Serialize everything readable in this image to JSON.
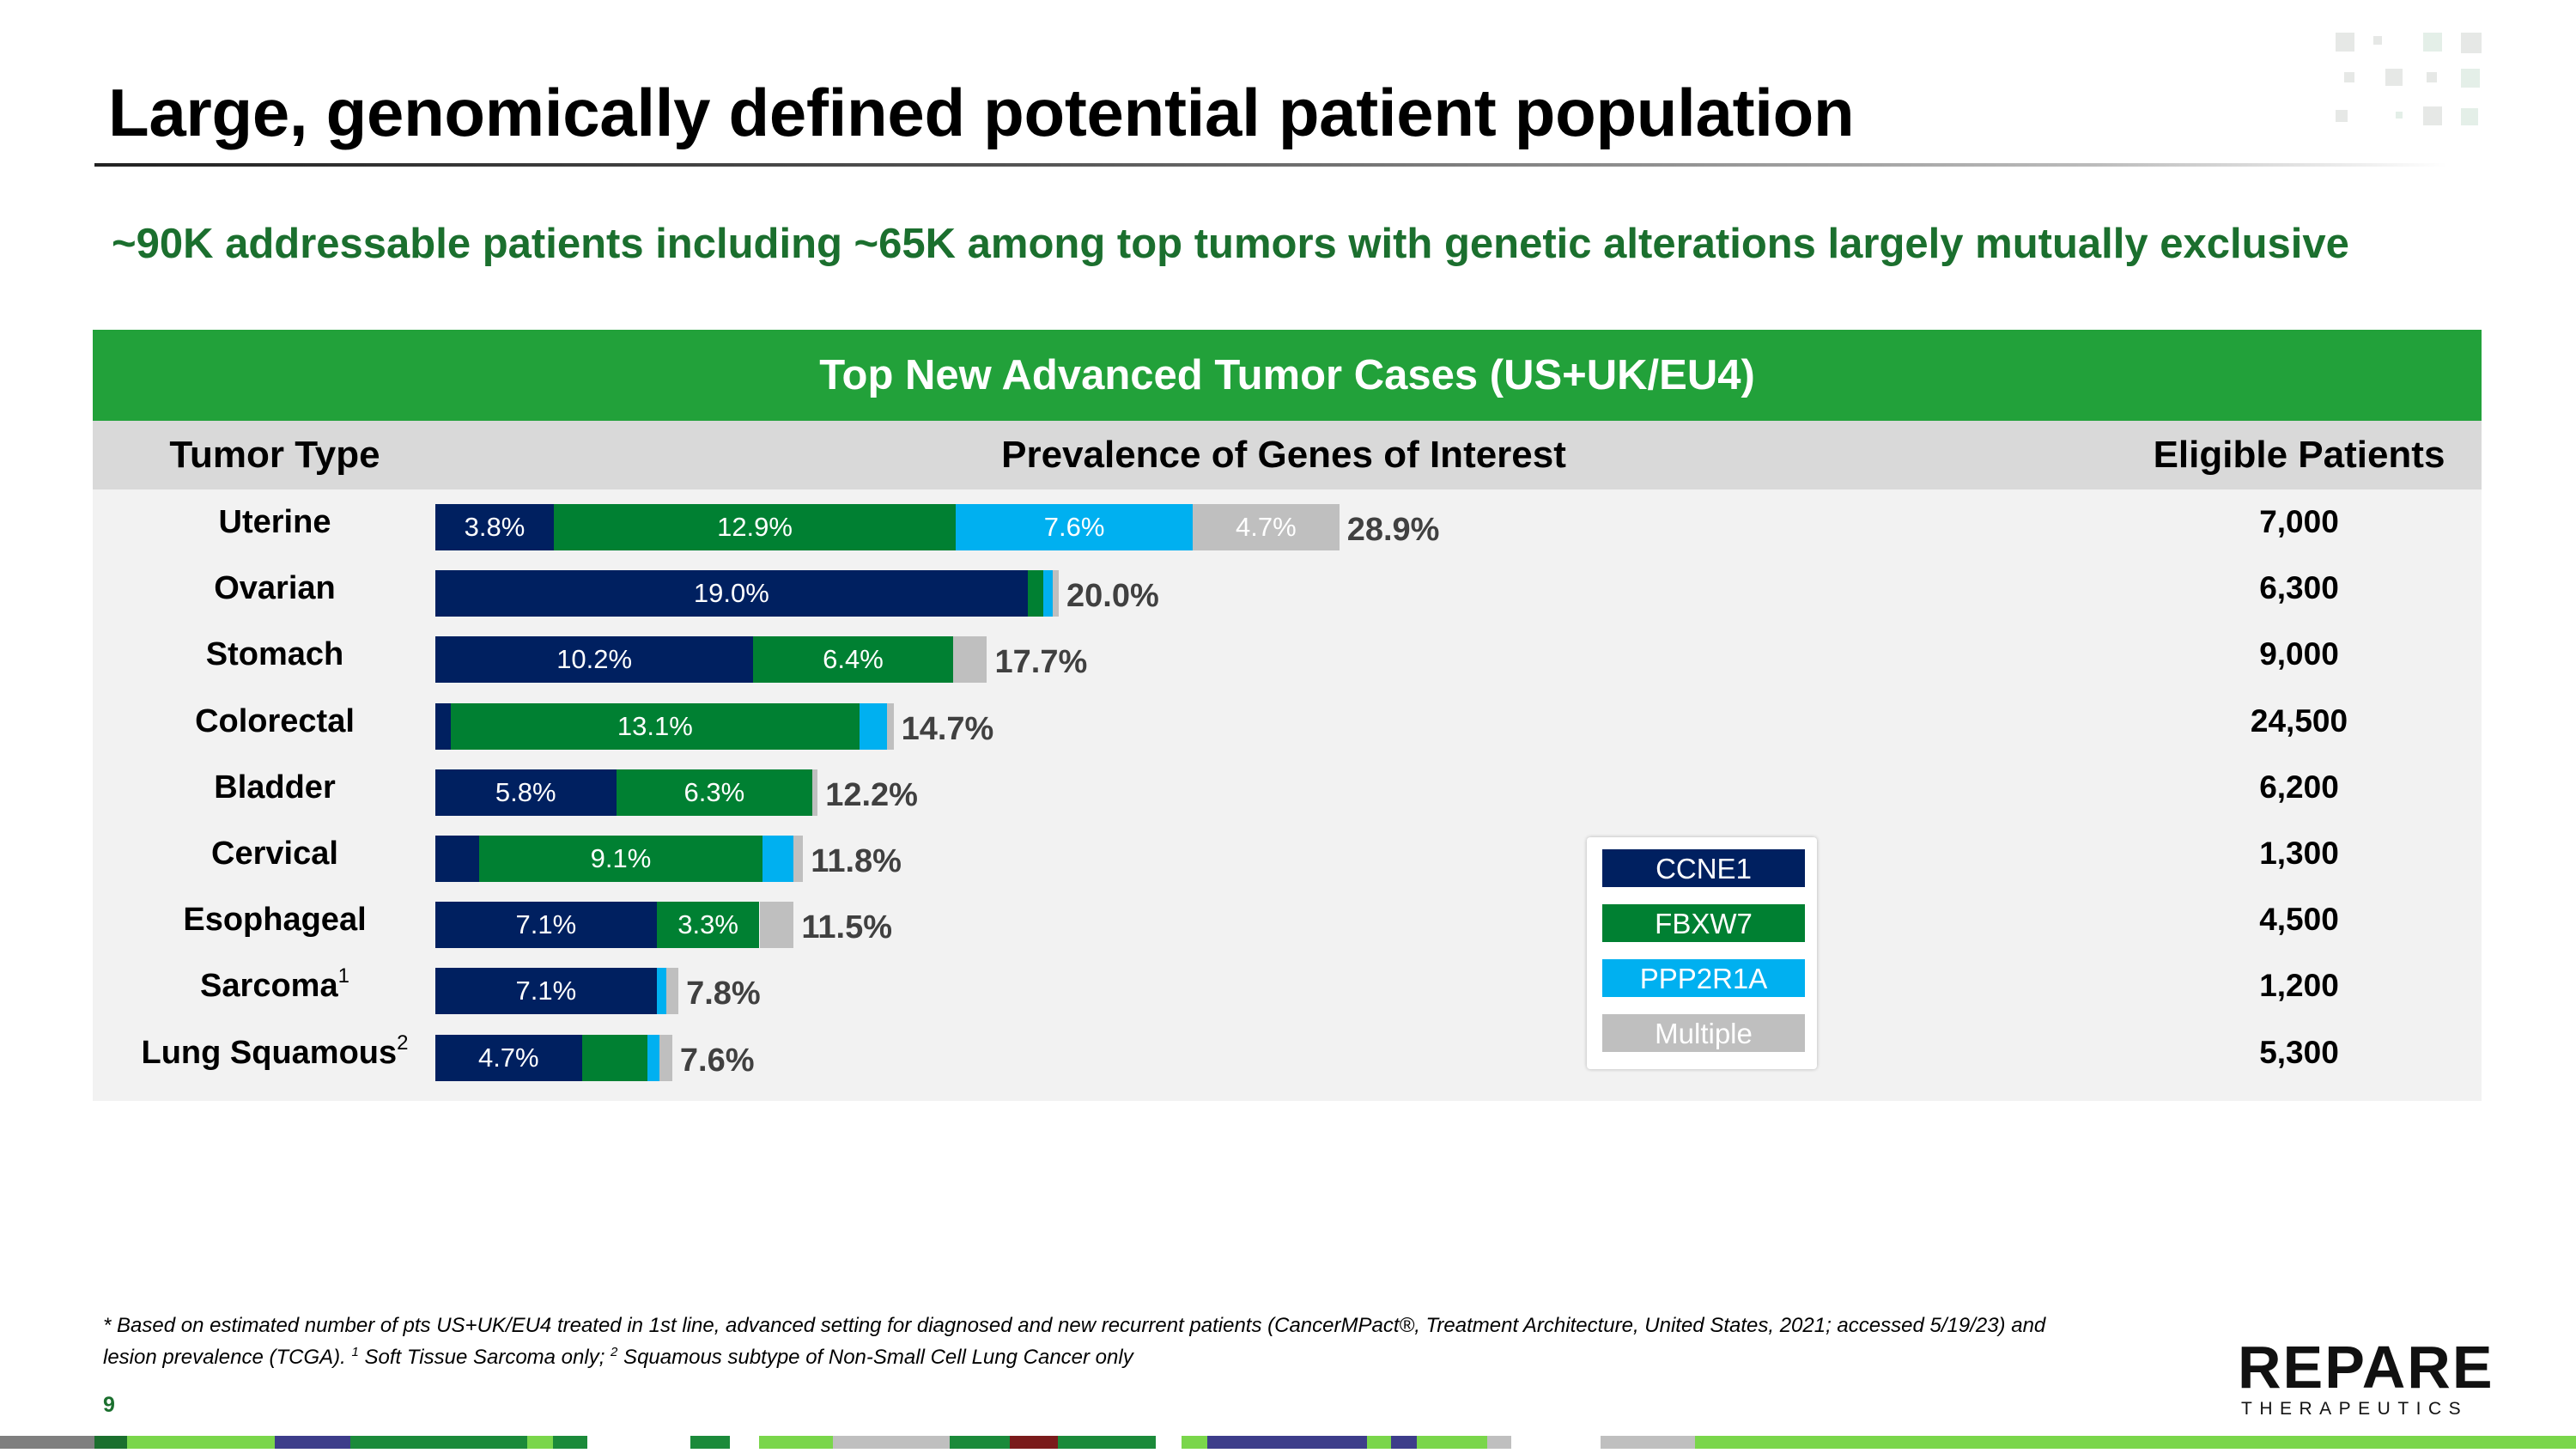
{
  "title": "Large, genomically defined potential patient population",
  "subtitle": "~90K addressable patients including ~65K among top tumors with genetic alterations largely mutually exclusive",
  "panel": {
    "header": "Top New Advanced Tumor Cases (US+UK/EU4)",
    "col_tumor": "Tumor Type",
    "col_prevalence": "Prevalence of Genes of Interest",
    "col_eligible": "Eligible Patients"
  },
  "colors": {
    "CCNE1": "#002060",
    "FBXW7": "#008032",
    "PPP2R1A": "#00b0f0",
    "Multiple": "#bfbfbf"
  },
  "chart_data": {
    "type": "bar",
    "orientation": "horizontal",
    "stacked": true,
    "title": "Prevalence of Genes of Interest",
    "unit": "%",
    "series_names": [
      "CCNE1",
      "FBXW7",
      "PPP2R1A",
      "Multiple"
    ],
    "rows": [
      {
        "tumor": "Uterine",
        "sup": "",
        "segments": [
          {
            "gene": "CCNE1",
            "value": 3.8,
            "label": "3.8%"
          },
          {
            "gene": "FBXW7",
            "value": 12.9,
            "label": "12.9%"
          },
          {
            "gene": "PPP2R1A",
            "value": 7.6,
            "label": "7.6%"
          },
          {
            "gene": "Multiple",
            "value": 4.7,
            "label": "4.7%"
          }
        ],
        "total": "28.9%",
        "eligible": "7,000"
      },
      {
        "tumor": "Ovarian",
        "sup": "",
        "segments": [
          {
            "gene": "CCNE1",
            "value": 19.0,
            "label": "19.0%"
          },
          {
            "gene": "FBXW7",
            "value": 0.5,
            "label": ""
          },
          {
            "gene": "PPP2R1A",
            "value": 0.3,
            "label": ""
          },
          {
            "gene": "Multiple",
            "value": 0.2,
            "label": ""
          }
        ],
        "total": "20.0%",
        "eligible": "6,300"
      },
      {
        "tumor": "Stomach",
        "sup": "",
        "segments": [
          {
            "gene": "CCNE1",
            "value": 10.2,
            "label": "10.2%"
          },
          {
            "gene": "FBXW7",
            "value": 6.4,
            "label": "6.4%"
          },
          {
            "gene": "Multiple",
            "value": 1.1,
            "label": ""
          }
        ],
        "total": "17.7%",
        "eligible": "9,000"
      },
      {
        "tumor": "Colorectal",
        "sup": "",
        "segments": [
          {
            "gene": "CCNE1",
            "value": 0.5,
            "label": ""
          },
          {
            "gene": "FBXW7",
            "value": 13.1,
            "label": "13.1%"
          },
          {
            "gene": "PPP2R1A",
            "value": 0.9,
            "label": ""
          },
          {
            "gene": "Multiple",
            "value": 0.2,
            "label": ""
          }
        ],
        "total": "14.7%",
        "eligible": "24,500"
      },
      {
        "tumor": "Bladder",
        "sup": "",
        "segments": [
          {
            "gene": "CCNE1",
            "value": 5.8,
            "label": "5.8%"
          },
          {
            "gene": "FBXW7",
            "value": 6.3,
            "label": "6.3%"
          },
          {
            "gene": "Multiple",
            "value": 0.1,
            "label": ""
          }
        ],
        "total": "12.2%",
        "eligible": "6,200"
      },
      {
        "tumor": "Cervical",
        "sup": "",
        "segments": [
          {
            "gene": "CCNE1",
            "value": 1.4,
            "label": ""
          },
          {
            "gene": "FBXW7",
            "value": 9.1,
            "label": "9.1%"
          },
          {
            "gene": "PPP2R1A",
            "value": 1.0,
            "label": ""
          },
          {
            "gene": "Multiple",
            "value": 0.3,
            "label": ""
          }
        ],
        "total": "11.8%",
        "eligible": "1,300"
      },
      {
        "tumor": "Esophageal",
        "sup": "",
        "segments": [
          {
            "gene": "CCNE1",
            "value": 7.1,
            "label": "7.1%"
          },
          {
            "gene": "FBXW7",
            "value": 3.3,
            "label": "3.3%"
          },
          {
            "gene": "Multiple",
            "value": 1.1,
            "label": ""
          }
        ],
        "total": "11.5%",
        "eligible": "4,500"
      },
      {
        "tumor": "Sarcoma",
        "sup": "1",
        "segments": [
          {
            "gene": "CCNE1",
            "value": 7.1,
            "label": "7.1%"
          },
          {
            "gene": "PPP2R1A",
            "value": 0.3,
            "label": ""
          },
          {
            "gene": "Multiple",
            "value": 0.4,
            "label": ""
          }
        ],
        "total": "7.8%",
        "eligible": "1,200"
      },
      {
        "tumor": "Lung Squamous",
        "sup": "2",
        "segments": [
          {
            "gene": "CCNE1",
            "value": 4.7,
            "label": "4.7%"
          },
          {
            "gene": "FBXW7",
            "value": 2.1,
            "label": ""
          },
          {
            "gene": "PPP2R1A",
            "value": 0.4,
            "label": ""
          },
          {
            "gene": "Multiple",
            "value": 0.4,
            "label": ""
          }
        ],
        "total": "7.6%",
        "eligible": "5,300"
      }
    ],
    "legend": [
      "CCNE1",
      "FBXW7",
      "PPP2R1A",
      "Multiple"
    ]
  },
  "footnote": {
    "line1": "* Based on estimated number of pts US+UK/EU4 treated in 1st line, advanced setting for diagnosed and new recurrent patients (CancerMPact®, Treatment Architecture, United States, 2021; accessed 5/19/23) and",
    "line2_a": "lesion prevalence (TCGA). ",
    "sup1": "1",
    "line2_b": " Soft Tissue Sarcoma only; ",
    "sup2": "2",
    "line2_c": " Squamous subtype of Non-Small Cell Lung Cancer only"
  },
  "page_number": "9",
  "logo": {
    "word": "REPARE",
    "sub": "THERAPEUTICS"
  }
}
